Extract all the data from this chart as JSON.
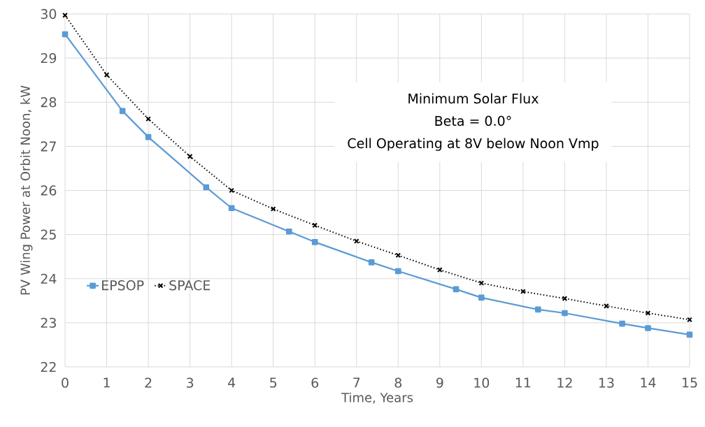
{
  "chart_data": {
    "type": "line",
    "xlabel": "Time, Years",
    "ylabel": "PV Wing Power at Orbit Noon, kW",
    "annotations": [
      "Minimum Solar Flux",
      "Beta = 0.0°",
      "Cell Operating at 8V below Noon Vmp"
    ],
    "xlim": [
      0,
      15
    ],
    "xticks": [
      0,
      1,
      2,
      3,
      4,
      5,
      6,
      7,
      8,
      9,
      10,
      11,
      12,
      13,
      14,
      15
    ],
    "ylim": [
      22,
      30
    ],
    "yticks": [
      22,
      23,
      24,
      25,
      26,
      27,
      28,
      29,
      30
    ],
    "grid": true,
    "legend": "left",
    "series": [
      {
        "name": "EPSOP",
        "color": "#5b9bd5",
        "marker": "square",
        "line_style": "solid",
        "x": [
          0,
          1.38,
          2,
          3.39,
          4,
          5.38,
          6,
          7.36,
          8,
          9.39,
          10,
          11.36,
          12,
          13.38,
          14,
          15
        ],
        "values": [
          29.54,
          27.8,
          27.21,
          26.07,
          25.6,
          25.07,
          24.83,
          24.37,
          24.17,
          23.76,
          23.57,
          23.3,
          23.22,
          22.98,
          22.88,
          22.73
        ]
      },
      {
        "name": "SPACE",
        "color": "#000000",
        "marker": "cross",
        "line_style": "dotted",
        "x": [
          0,
          1,
          2,
          3,
          4,
          5,
          6,
          7,
          8,
          9,
          10,
          11,
          12,
          13,
          14,
          15
        ],
        "values": [
          29.97,
          28.62,
          27.62,
          26.77,
          26.0,
          25.58,
          25.21,
          24.85,
          24.53,
          24.2,
          23.9,
          23.71,
          23.55,
          23.38,
          23.22,
          23.07
        ]
      }
    ]
  }
}
